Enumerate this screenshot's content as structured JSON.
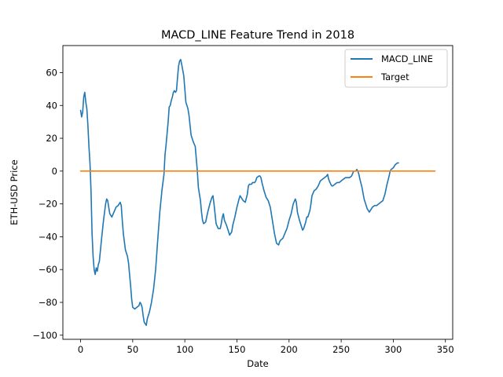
{
  "chart_data": {
    "type": "line",
    "title": "MACD_LINE Feature Trend in 2018",
    "xlabel": "Date",
    "ylabel": "ETH-USD Price",
    "xlim": [
      -17,
      357
    ],
    "ylim": [
      -102.5,
      76.5
    ],
    "xticks": [
      0,
      50,
      100,
      150,
      200,
      250,
      300,
      350
    ],
    "yticks": [
      -100,
      -80,
      -60,
      -40,
      -20,
      0,
      20,
      40,
      60
    ],
    "grid": false,
    "legend_position": "top-right",
    "series": [
      {
        "name": "MACD_LINE",
        "color": "#1f77b4",
        "points": [
          [
            0,
            37
          ],
          [
            1,
            33
          ],
          [
            2,
            36
          ],
          [
            3,
            45
          ],
          [
            4,
            48
          ],
          [
            5,
            42
          ],
          [
            6,
            38
          ],
          [
            7,
            28
          ],
          [
            8,
            15
          ],
          [
            9,
            5
          ],
          [
            10,
            -12
          ],
          [
            11,
            -38
          ],
          [
            12,
            -52
          ],
          [
            13,
            -60
          ],
          [
            14,
            -63
          ],
          [
            15,
            -59
          ],
          [
            16,
            -61
          ],
          [
            17,
            -57
          ],
          [
            18,
            -55
          ],
          [
            20,
            -42
          ],
          [
            22,
            -30
          ],
          [
            23,
            -25
          ],
          [
            24,
            -20
          ],
          [
            25,
            -17
          ],
          [
            26,
            -18
          ],
          [
            27,
            -22
          ],
          [
            28,
            -26
          ],
          [
            30,
            -28
          ],
          [
            32,
            -25
          ],
          [
            34,
            -22
          ],
          [
            36,
            -21
          ],
          [
            38,
            -19
          ],
          [
            39,
            -21
          ],
          [
            40,
            -30
          ],
          [
            41,
            -38
          ],
          [
            43,
            -48
          ],
          [
            45,
            -52
          ],
          [
            46,
            -56
          ],
          [
            47,
            -63
          ],
          [
            48,
            -70
          ],
          [
            49,
            -78
          ],
          [
            50,
            -83
          ],
          [
            52,
            -84
          ],
          [
            54,
            -83
          ],
          [
            56,
            -82
          ],
          [
            57,
            -80
          ],
          [
            58,
            -81
          ],
          [
            59,
            -83
          ],
          [
            60,
            -88
          ],
          [
            61,
            -92
          ],
          [
            62,
            -93
          ],
          [
            63,
            -94
          ],
          [
            64,
            -90
          ],
          [
            66,
            -86
          ],
          [
            68,
            -80
          ],
          [
            70,
            -72
          ],
          [
            72,
            -60
          ],
          [
            74,
            -42
          ],
          [
            76,
            -25
          ],
          [
            78,
            -12
          ],
          [
            80,
            -2
          ],
          [
            81,
            10
          ],
          [
            82,
            16
          ],
          [
            84,
            30
          ],
          [
            85,
            39
          ],
          [
            86,
            40
          ],
          [
            87,
            43
          ],
          [
            88,
            45
          ],
          [
            89,
            48
          ],
          [
            90,
            49
          ],
          [
            91,
            48
          ],
          [
            92,
            49
          ],
          [
            93,
            57
          ],
          [
            94,
            64
          ],
          [
            95,
            67
          ],
          [
            96,
            68
          ],
          [
            97,
            65
          ],
          [
            99,
            58
          ],
          [
            100,
            50
          ],
          [
            101,
            42
          ],
          [
            103,
            38
          ],
          [
            104,
            34
          ],
          [
            106,
            22
          ],
          [
            108,
            18
          ],
          [
            110,
            15
          ],
          [
            112,
            0
          ],
          [
            113,
            -10
          ],
          [
            115,
            -18
          ],
          [
            116,
            -25
          ],
          [
            117,
            -30
          ],
          [
            118,
            -32
          ],
          [
            120,
            -31
          ],
          [
            122,
            -25
          ],
          [
            124,
            -20
          ],
          [
            126,
            -16
          ],
          [
            127,
            -15
          ],
          [
            128,
            -20
          ],
          [
            129,
            -26
          ],
          [
            130,
            -32
          ],
          [
            132,
            -35
          ],
          [
            134,
            -35
          ],
          [
            135,
            -32
          ],
          [
            136,
            -28
          ],
          [
            137,
            -26
          ],
          [
            138,
            -30
          ],
          [
            140,
            -33
          ],
          [
            142,
            -37
          ],
          [
            143,
            -39
          ],
          [
            145,
            -37
          ],
          [
            146,
            -33
          ],
          [
            148,
            -28
          ],
          [
            150,
            -22
          ],
          [
            152,
            -17
          ],
          [
            153,
            -15
          ],
          [
            154,
            -16
          ],
          [
            156,
            -18
          ],
          [
            158,
            -19
          ],
          [
            160,
            -14
          ],
          [
            161,
            -9
          ],
          [
            162,
            -8
          ],
          [
            164,
            -8
          ],
          [
            165,
            -7
          ],
          [
            167,
            -7
          ],
          [
            168,
            -6
          ],
          [
            169,
            -4
          ],
          [
            171,
            -3
          ],
          [
            172,
            -3
          ],
          [
            173,
            -4
          ],
          [
            174,
            -7
          ],
          [
            176,
            -12
          ],
          [
            178,
            -16
          ],
          [
            180,
            -18
          ],
          [
            182,
            -22
          ],
          [
            184,
            -30
          ],
          [
            186,
            -38
          ],
          [
            188,
            -44
          ],
          [
            190,
            -45
          ],
          [
            191,
            -43
          ],
          [
            192,
            -42
          ],
          [
            194,
            -41
          ],
          [
            196,
            -38
          ],
          [
            198,
            -35
          ],
          [
            200,
            -30
          ],
          [
            202,
            -26
          ],
          [
            204,
            -20
          ],
          [
            206,
            -17
          ],
          [
            207,
            -19
          ],
          [
            208,
            -25
          ],
          [
            210,
            -30
          ],
          [
            212,
            -34
          ],
          [
            213,
            -36
          ],
          [
            214,
            -35
          ],
          [
            216,
            -31
          ],
          [
            217,
            -28
          ],
          [
            218,
            -28
          ],
          [
            220,
            -24
          ],
          [
            221,
            -20
          ],
          [
            222,
            -15
          ],
          [
            224,
            -12
          ],
          [
            226,
            -11
          ],
          [
            228,
            -9
          ],
          [
            230,
            -6
          ],
          [
            232,
            -5
          ],
          [
            234,
            -4
          ],
          [
            236,
            -3
          ],
          [
            237,
            -2
          ],
          [
            238,
            -5
          ],
          [
            240,
            -8
          ],
          [
            241,
            -9
          ],
          [
            242,
            -9
          ],
          [
            244,
            -8
          ],
          [
            246,
            -7
          ],
          [
            248,
            -7
          ],
          [
            250,
            -6
          ],
          [
            252,
            -5
          ],
          [
            254,
            -4
          ],
          [
            256,
            -4
          ],
          [
            258,
            -4
          ],
          [
            260,
            -3
          ],
          [
            262,
            0
          ],
          [
            264,
            0
          ],
          [
            265,
            1
          ],
          [
            266,
            0
          ],
          [
            267,
            -2
          ],
          [
            268,
            -5
          ],
          [
            270,
            -10
          ],
          [
            272,
            -17
          ],
          [
            274,
            -21
          ],
          [
            275,
            -23
          ],
          [
            276,
            -24
          ],
          [
            277,
            -25
          ],
          [
            278,
            -24
          ],
          [
            280,
            -22
          ],
          [
            282,
            -21
          ],
          [
            284,
            -21
          ],
          [
            286,
            -20
          ],
          [
            288,
            -19
          ],
          [
            290,
            -18
          ],
          [
            292,
            -14
          ],
          [
            294,
            -8
          ],
          [
            296,
            -3
          ],
          [
            297,
            0
          ],
          [
            298,
            1
          ],
          [
            300,
            2
          ],
          [
            302,
            4
          ],
          [
            304,
            5
          ],
          [
            305,
            5
          ]
        ]
      },
      {
        "name": "Target",
        "color": "#ff7f0e",
        "points": [
          [
            0,
            0
          ],
          [
            340,
            0
          ]
        ]
      }
    ]
  }
}
